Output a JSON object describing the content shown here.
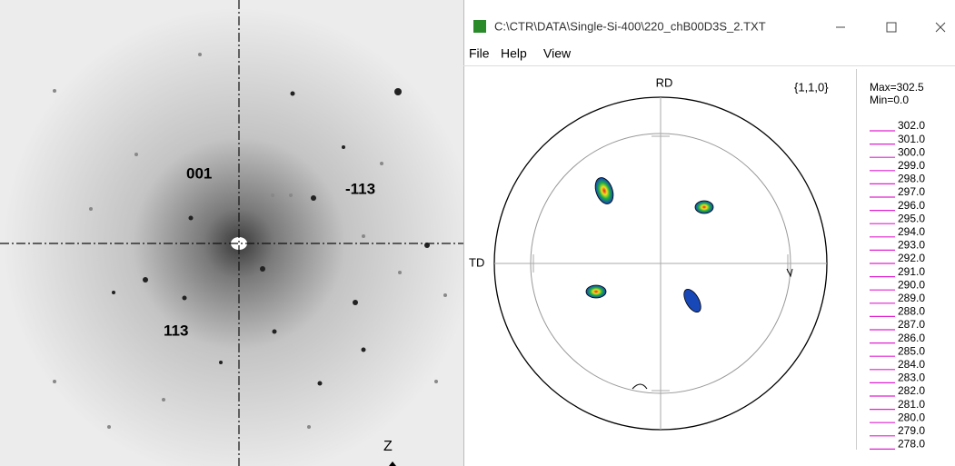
{
  "laue_image": {
    "labels": [
      "001",
      "-113",
      "113",
      "Z"
    ]
  },
  "window": {
    "title": "C:\\CTR\\DATA\\Single-Si-400\\220_chB00D3S_2.TXT",
    "menu": [
      "File",
      "Help",
      "View"
    ],
    "pole_figure": {
      "rd_label": "RD",
      "td_label": "TD",
      "plane": "{1,1,0}"
    },
    "legend": {
      "max": "Max=302.5",
      "min": "Min=0.0",
      "levels": [
        "302.0",
        "301.0",
        "300.0",
        "299.0",
        "298.0",
        "297.0",
        "296.0",
        "295.0",
        "294.0",
        "293.0",
        "292.0",
        "291.0",
        "290.0",
        "289.0",
        "288.0",
        "287.0",
        "286.0",
        "285.0",
        "284.0",
        "283.0",
        "282.0",
        "281.0",
        "280.0",
        "279.0",
        "278.0"
      ]
    }
  }
}
